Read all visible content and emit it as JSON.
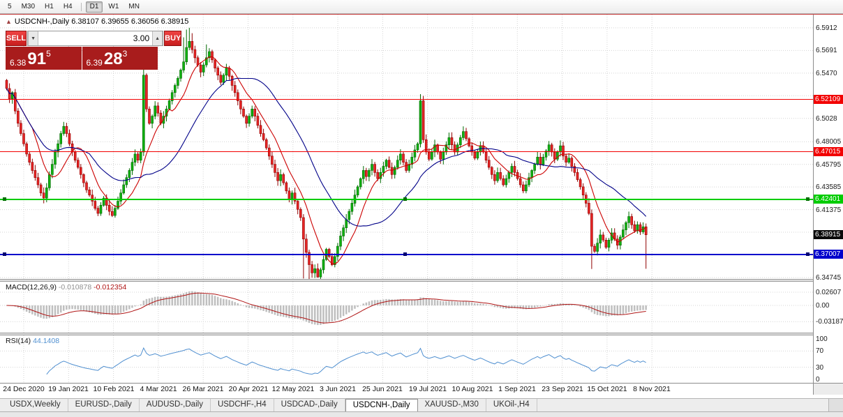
{
  "toolbar": {
    "periods": [
      "5",
      "M30",
      "H1",
      "H4",
      "D1",
      "W1",
      "MN"
    ],
    "active": "D1",
    "separator_before": "D1"
  },
  "title_bar": {
    "collapse_icon": "▲",
    "text": "USDCNH-,Daily 6.38107 6.39655 6.36056 6.38915"
  },
  "trade_panel": {
    "sell_button": "SELL",
    "buy_button": "BUY",
    "volume": "3.00",
    "sell_price": {
      "prefix": "6.38",
      "big": "91",
      "sup": "5"
    },
    "buy_price": {
      "prefix": "6.39",
      "big": "28",
      "sup": "3"
    }
  },
  "price_axis": {
    "grid_prices": [
      6.5912,
      6.5691,
      6.547,
      6.5249,
      6.5028,
      6.48005,
      6.45795,
      6.43585,
      6.41375,
      6.39165,
      6.36955,
      6.34745
    ],
    "labels": [
      {
        "text": "6.5912",
        "price": 6.5912
      },
      {
        "text": "6.5691",
        "price": 6.5691
      },
      {
        "text": "6.5470",
        "price": 6.547
      },
      {
        "text": "6.5028",
        "price": 6.5028
      },
      {
        "text": "6.48005",
        "price": 6.48005
      },
      {
        "text": "6.45795",
        "price": 6.45795
      },
      {
        "text": "6.43585",
        "price": 6.43585
      },
      {
        "text": "6.41375",
        "price": 6.41375
      },
      {
        "text": "6.34745",
        "price": 6.34745
      }
    ]
  },
  "hlines": [
    {
      "label": "6.52109",
      "price": 6.52109,
      "color": "#f20000",
      "width": 1,
      "handles": false,
      "handle_color": "#900000"
    },
    {
      "label": "6.47015",
      "price": 6.47015,
      "color": "#f20000",
      "width": 1,
      "handles": false,
      "handle_color": "#900000"
    },
    {
      "label": "6.42401",
      "price": 6.42401,
      "color": "#00cc00",
      "width": 2,
      "handles": true,
      "handle_color": "#007000"
    },
    {
      "label": "6.37007",
      "price": 6.37007,
      "color": "#0000cc",
      "width": 2,
      "handles": true,
      "handle_color": "#000070"
    }
  ],
  "current_price": {
    "label": "6.38915",
    "price": 6.38915,
    "color": "#0a0a0a"
  },
  "macd_panel": {
    "name": "MACD(12,26,9)",
    "values": [
      "-0.010878",
      "-0.012354"
    ],
    "axis_labels": [
      {
        "text": "0.02607",
        "value": 0.02607
      },
      {
        "text": "0.00",
        "value": 0
      },
      {
        "text": "-0.03187",
        "value": -0.03187
      }
    ]
  },
  "rsi_panel": {
    "name": "RSI(14)",
    "value": "44.1408",
    "axis_labels": [
      {
        "text": "100",
        "value": 100
      },
      {
        "text": "70",
        "value": 70
      },
      {
        "text": "30",
        "value": 30
      },
      {
        "text": "0",
        "value": 0
      }
    ],
    "levels": [
      70,
      30
    ]
  },
  "date_axis": [
    "24 Dec 2020",
    "19 Jan 2021",
    "10 Feb 2021",
    "4 Mar 2021",
    "26 Mar 2021",
    "20 Apr 2021",
    "12 May 2021",
    "3 Jun 2021",
    "25 Jun 2021",
    "19 Jul 2021",
    "10 Aug 2021",
    "1 Sep 2021",
    "23 Sep 2021",
    "15 Oct 2021",
    "8 Nov 2021"
  ],
  "tabs": [
    {
      "label": "USDX,Weekly",
      "active": false
    },
    {
      "label": "EURUSD-,Daily",
      "active": false
    },
    {
      "label": "AUDUSD-,Daily",
      "active": false
    },
    {
      "label": "USDCHF-,H4",
      "active": false
    },
    {
      "label": "USDCAD-,Daily",
      "active": false
    },
    {
      "label": "USDCNH-,Daily",
      "active": true
    },
    {
      "label": "XAUUSD-,M30",
      "active": false
    },
    {
      "label": "UKOil-,H4",
      "active": false
    }
  ],
  "chart_data": {
    "type": "candlestick",
    "symbol": "USDCNH-",
    "timeframe": "Daily",
    "quote": {
      "open": 6.38107,
      "high": 6.39655,
      "low": 6.36056,
      "close": 6.38915
    },
    "y_range": [
      6.3447,
      6.6041
    ],
    "first_open": 6.54,
    "closes": [
      6.532,
      6.522,
      6.528,
      6.51,
      6.498,
      6.488,
      6.478,
      6.468,
      6.46,
      6.452,
      6.445,
      6.438,
      6.43,
      6.425,
      6.435,
      6.448,
      6.458,
      6.47,
      6.478,
      6.488,
      6.495,
      6.488,
      6.478,
      6.47,
      6.462,
      6.455,
      6.448,
      6.44,
      6.433,
      6.428,
      6.422,
      6.415,
      6.41,
      6.418,
      6.425,
      6.418,
      6.412,
      6.408,
      6.415,
      6.422,
      6.43,
      6.438,
      6.445,
      6.452,
      6.46,
      6.468,
      6.462,
      6.47,
      6.545,
      6.512,
      6.498,
      6.505,
      6.515,
      6.508,
      6.498,
      6.505,
      6.512,
      6.52,
      6.528,
      6.535,
      6.542,
      6.55,
      6.558,
      6.572,
      6.578,
      6.57,
      6.562,
      6.555,
      6.548,
      6.555,
      6.562,
      6.568,
      6.56,
      6.552,
      6.545,
      6.538,
      6.545,
      6.552,
      6.544,
      6.535,
      6.528,
      6.52,
      6.512,
      6.505,
      6.498,
      6.505,
      6.512,
      6.505,
      6.496,
      6.488,
      6.482,
      6.474,
      6.466,
      6.458,
      6.45,
      6.442,
      6.448,
      6.44,
      6.432,
      6.424,
      6.43,
      6.422,
      6.414,
      6.406,
      6.385,
      6.372,
      6.36,
      6.352,
      6.356,
      6.348,
      6.355,
      6.365,
      6.375,
      6.368,
      6.36,
      6.368,
      6.378,
      6.388,
      6.396,
      6.404,
      6.412,
      6.42,
      6.428,
      6.436,
      6.444,
      6.452,
      6.446,
      6.452,
      6.458,
      6.45,
      6.444,
      6.45,
      6.456,
      6.462,
      6.455,
      6.448,
      6.455,
      6.462,
      6.468,
      6.46,
      6.452,
      6.458,
      6.465,
      6.472,
      6.478,
      6.52,
      6.482,
      6.47,
      6.463,
      6.47,
      6.477,
      6.47,
      6.463,
      6.47,
      6.477,
      6.484,
      6.477,
      6.47,
      6.477,
      6.484,
      6.49,
      6.483,
      6.476,
      6.47,
      6.464,
      6.47,
      6.476,
      6.47,
      6.462,
      6.455,
      6.448,
      6.442,
      6.45,
      6.444,
      6.438,
      6.444,
      6.45,
      6.456,
      6.45,
      6.444,
      6.438,
      6.432,
      6.438,
      6.445,
      6.452,
      6.458,
      6.465,
      6.458,
      6.465,
      6.471,
      6.477,
      6.47,
      6.463,
      6.47,
      6.476,
      6.466,
      6.46,
      6.464,
      6.456,
      6.45,
      6.443,
      6.436,
      6.428,
      6.42,
      6.41,
      6.378,
      6.373,
      6.381,
      6.389,
      6.384,
      6.377,
      6.384,
      6.391,
      6.385,
      6.379,
      6.387,
      6.394,
      6.401,
      6.407,
      6.399,
      6.393,
      6.399,
      6.392,
      6.397,
      6.38915
    ],
    "wick_overrides": {
      "48": {
        "h": 6.557,
        "l": 6.466
      },
      "62": {
        "h": 6.582
      },
      "63": {
        "h": 6.5895
      },
      "64": {
        "h": 6.5912
      },
      "65": {
        "h": 6.586
      },
      "70": {
        "h": 6.575
      },
      "104": {
        "l": 6.3465
      },
      "106": {
        "l": 6.345
      },
      "109": {
        "l": 6.3472
      },
      "145": {
        "h": 6.5265
      },
      "205": {
        "l": 6.3558
      },
      "224": {
        "l": 6.356
      }
    },
    "ma_fast_period": 10,
    "ma_slow_period": 30,
    "macd": {
      "fast": 12,
      "slow": 26,
      "signal": 9
    },
    "rsi": {
      "period": 14
    },
    "colors": {
      "up": "#10b010",
      "up_border": "#006a00",
      "down": "#e62525",
      "down_border": "#8f0000",
      "ma_fast": "#cc0000",
      "ma_slow": "#000088",
      "macd_hist": "#bfbfbf",
      "macd_signal": "#b01515",
      "rsi": "#4f8fd0"
    }
  }
}
